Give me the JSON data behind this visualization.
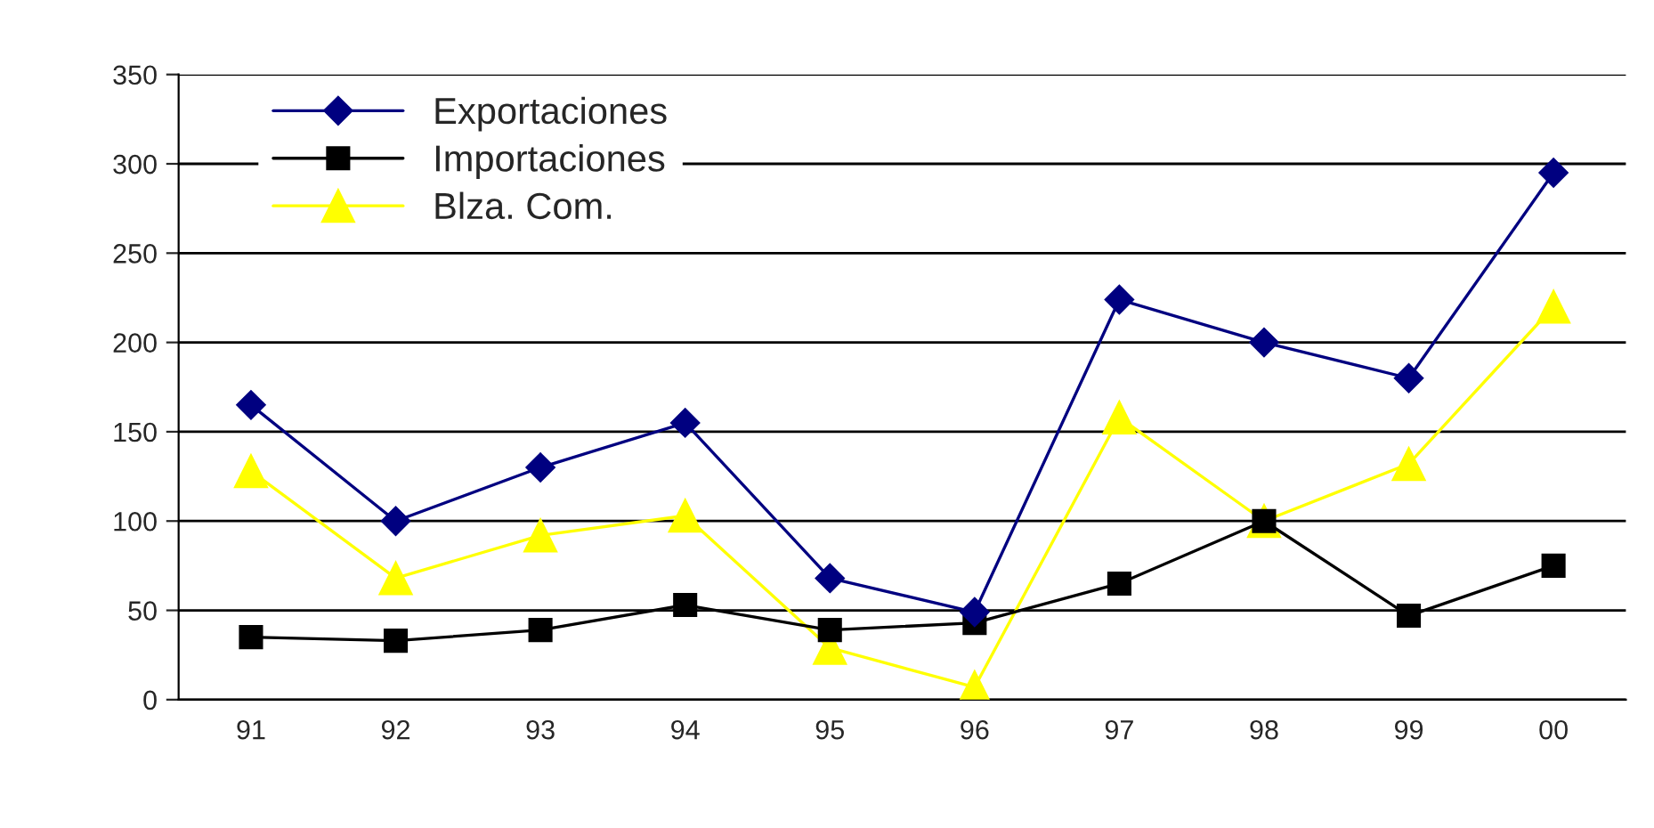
{
  "chart_data": {
    "type": "line",
    "categories": [
      "91",
      "92",
      "93",
      "94",
      "95",
      "96",
      "97",
      "98",
      "99",
      "00"
    ],
    "series": [
      {
        "name": "Exportaciones",
        "color": "#000080",
        "marker": "diamond",
        "values": [
          165,
          100,
          130,
          155,
          68,
          49,
          224,
          200,
          180,
          295
        ]
      },
      {
        "name": "Importaciones",
        "color": "#000000",
        "marker": "square",
        "values": [
          35,
          33,
          39,
          53,
          39,
          43,
          65,
          100,
          47,
          75
        ]
      },
      {
        "name": "Blza. Com.",
        "color": "#ffff00",
        "marker": "triangle",
        "values": [
          128,
          68,
          92,
          103,
          29,
          7,
          158,
          100,
          132,
          220
        ]
      }
    ],
    "ylim": [
      0,
      350
    ],
    "yticks": [
      0,
      50,
      100,
      150,
      200,
      250,
      300,
      350
    ],
    "grid": "y",
    "legend": "top left",
    "line_style": "solid"
  }
}
